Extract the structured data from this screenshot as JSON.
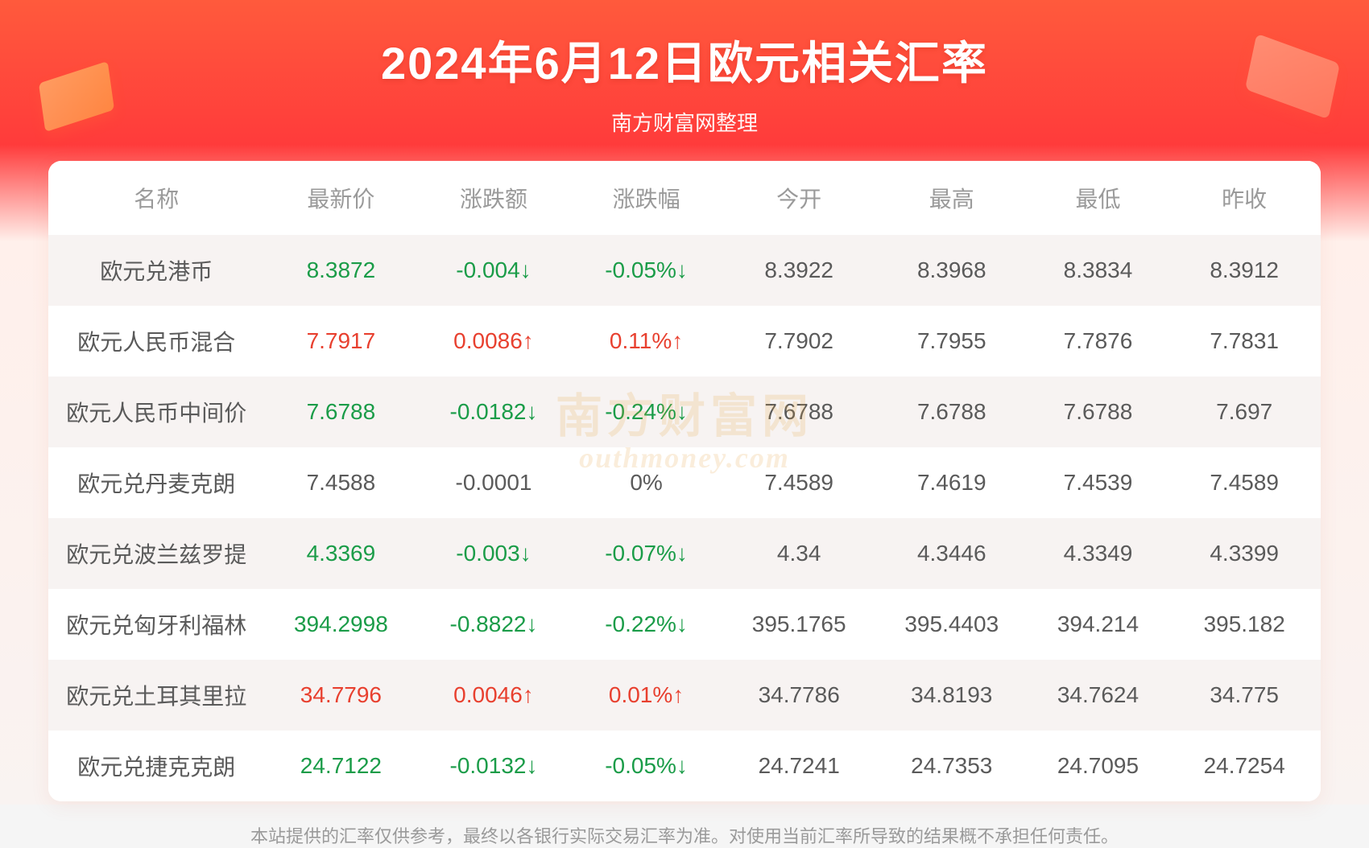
{
  "title": "2024年6月12日欧元相关汇率",
  "subtitle": "南方财富网整理",
  "disclaimer": "本站提供的汇率仅供参考，最终以各银行实际交易汇率为准。对使用当前汇率所导致的结果概不承担任何责任。",
  "watermark_cn": "南方财富网",
  "watermark_en": "outhmoney.com",
  "colors": {
    "up": "#e8402f",
    "down": "#1a9c48",
    "neutral": "#5a5a5a",
    "header_text": "#9a9a9a",
    "row_alt": "#f7f3f2",
    "bg_white": "#ffffff"
  },
  "columns": [
    "名称",
    "最新价",
    "涨跌额",
    "涨跌幅",
    "今开",
    "最高",
    "最低",
    "昨收"
  ],
  "rows": [
    {
      "name": "欧元兑港币",
      "latest": "8.3872",
      "chg": "-0.004↓",
      "pct": "-0.05%↓",
      "open": "8.3922",
      "high": "8.3968",
      "low": "8.3834",
      "prev": "8.3912",
      "dir": "down"
    },
    {
      "name": "欧元人民币混合",
      "latest": "7.7917",
      "chg": "0.0086↑",
      "pct": "0.11%↑",
      "open": "7.7902",
      "high": "7.7955",
      "low": "7.7876",
      "prev": "7.7831",
      "dir": "up"
    },
    {
      "name": "欧元人民币中间价",
      "latest": "7.6788",
      "chg": "-0.0182↓",
      "pct": "-0.24%↓",
      "open": "7.6788",
      "high": "7.6788",
      "low": "7.6788",
      "prev": "7.697",
      "dir": "down"
    },
    {
      "name": "欧元兑丹麦克朗",
      "latest": "7.4588",
      "chg": "-0.0001",
      "pct": "0%",
      "open": "7.4589",
      "high": "7.4619",
      "low": "7.4539",
      "prev": "7.4589",
      "dir": "neutral"
    },
    {
      "name": "欧元兑波兰兹罗提",
      "latest": "4.3369",
      "chg": "-0.003↓",
      "pct": "-0.07%↓",
      "open": "4.34",
      "high": "4.3446",
      "low": "4.3349",
      "prev": "4.3399",
      "dir": "down"
    },
    {
      "name": "欧元兑匈牙利福林",
      "latest": "394.2998",
      "chg": "-0.8822↓",
      "pct": "-0.22%↓",
      "open": "395.1765",
      "high": "395.4403",
      "low": "394.214",
      "prev": "395.182",
      "dir": "down"
    },
    {
      "name": "欧元兑土耳其里拉",
      "latest": "34.7796",
      "chg": "0.0046↑",
      "pct": "0.01%↑",
      "open": "34.7786",
      "high": "34.8193",
      "low": "34.7624",
      "prev": "34.775",
      "dir": "up"
    },
    {
      "name": "欧元兑捷克克朗",
      "latest": "24.7122",
      "chg": "-0.0132↓",
      "pct": "-0.05%↓",
      "open": "24.7241",
      "high": "24.7353",
      "low": "24.7095",
      "prev": "24.7254",
      "dir": "down"
    }
  ]
}
